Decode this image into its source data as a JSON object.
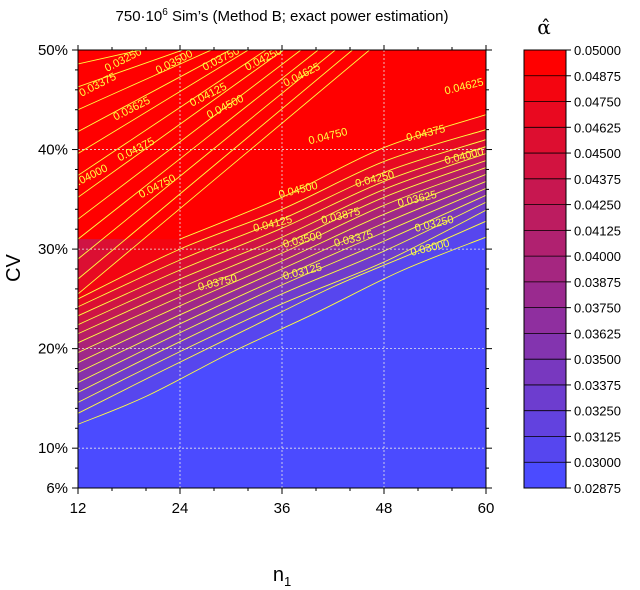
{
  "chart_data": {
    "type": "heatmap",
    "title_prefix": "750·10",
    "title_sup": "6",
    "title_rest": " Sim’s (Method B; exact power estimation)",
    "xlabel": "n",
    "xlabel_sub": "1",
    "ylabel": "CV",
    "xlim": [
      12,
      60
    ],
    "ylim": [
      0.06,
      0.5
    ],
    "x_ticks": [
      12,
      24,
      36,
      48,
      60
    ],
    "x_tick_labels": [
      "12",
      "24",
      "36",
      "48",
      "60"
    ],
    "y_ticks": [
      0.06,
      0.1,
      0.2,
      0.3,
      0.4,
      0.5
    ],
    "y_tick_labels": [
      "6%",
      "10%",
      "20%",
      "30%",
      "40%",
      "50%"
    ],
    "grid": true,
    "legend_title": "α̂",
    "legend_placement": "right",
    "color_levels": [
      "0.02875",
      "0.03000",
      "0.03125",
      "0.03250",
      "0.03375",
      "0.03500",
      "0.03625",
      "0.03750",
      "0.03875",
      "0.04000",
      "0.04125",
      "0.04250",
      "0.04375",
      "0.04500",
      "0.04625",
      "0.04750",
      "0.04875",
      "0.05000"
    ],
    "colors": {
      "low": "#4b4bff",
      "high": "#ff0000",
      "contour": "#ffff40"
    },
    "contour_lines": [
      {
        "label": "0.03000",
        "points": [
          [
            12,
            0.124
          ],
          [
            20,
            0.152
          ],
          [
            30,
            0.196
          ],
          [
            40,
            0.236
          ],
          [
            50,
            0.278
          ],
          [
            60,
            0.312
          ]
        ]
      },
      {
        "label": "0.03125",
        "points": [
          [
            12,
            0.135
          ],
          [
            22,
            0.178
          ],
          [
            32,
            0.22
          ],
          [
            42,
            0.262
          ],
          [
            52,
            0.298
          ],
          [
            60,
            0.328
          ]
        ]
      },
      {
        "label": "0.03250",
        "points": [
          [
            12,
            0.146
          ],
          [
            24,
            0.197
          ],
          [
            36,
            0.245
          ],
          [
            48,
            0.287
          ],
          [
            60,
            0.339
          ]
        ],
        "upper": [
          [
            12,
            0.486
          ],
          [
            22,
            0.505
          ]
        ]
      },
      {
        "label": "0.03375",
        "points": [
          [
            12,
            0.156
          ],
          [
            24,
            0.207
          ],
          [
            36,
            0.255
          ],
          [
            48,
            0.298
          ],
          [
            60,
            0.347
          ]
        ],
        "upper": [
          [
            12,
            0.463
          ],
          [
            26,
            0.505
          ]
        ]
      },
      {
        "label": "0.03500",
        "points": [
          [
            12,
            0.166
          ],
          [
            24,
            0.216
          ],
          [
            36,
            0.264
          ],
          [
            48,
            0.308
          ],
          [
            60,
            0.354
          ]
        ],
        "upper": [
          [
            12,
            0.44
          ],
          [
            29,
            0.505
          ]
        ]
      },
      {
        "label": "0.03625",
        "points": [
          [
            12,
            0.176
          ],
          [
            24,
            0.225
          ],
          [
            36,
            0.272
          ],
          [
            48,
            0.317
          ],
          [
            60,
            0.361
          ]
        ],
        "upper": [
          [
            12,
            0.418
          ],
          [
            31,
            0.505
          ]
        ]
      },
      {
        "label": "0.03750",
        "points": [
          [
            12,
            0.186
          ],
          [
            24,
            0.234
          ],
          [
            36,
            0.28
          ],
          [
            48,
            0.326
          ],
          [
            60,
            0.368
          ]
        ],
        "upper": [
          [
            12,
            0.396
          ],
          [
            33,
            0.505
          ]
        ]
      },
      {
        "label": "0.03875",
        "points": [
          [
            12,
            0.196
          ],
          [
            24,
            0.243
          ],
          [
            36,
            0.288
          ],
          [
            48,
            0.335
          ],
          [
            60,
            0.375
          ]
        ],
        "upper": [
          [
            12,
            0.374
          ],
          [
            35,
            0.505
          ]
        ]
      },
      {
        "label": "0.04000",
        "points": [
          [
            12,
            0.206
          ],
          [
            24,
            0.252
          ],
          [
            36,
            0.296
          ],
          [
            48,
            0.344
          ],
          [
            60,
            0.382
          ]
        ],
        "upper": [
          [
            12,
            0.352
          ],
          [
            37,
            0.505
          ]
        ]
      },
      {
        "label": "0.04125",
        "points": [
          [
            12,
            0.215
          ],
          [
            24,
            0.261
          ],
          [
            36,
            0.304
          ],
          [
            48,
            0.352
          ],
          [
            60,
            0.389
          ]
        ],
        "upper": [
          [
            12,
            0.33
          ],
          [
            39,
            0.505
          ]
        ]
      },
      {
        "label": "0.04250",
        "points": [
          [
            12,
            0.224
          ],
          [
            24,
            0.27
          ],
          [
            36,
            0.312
          ],
          [
            48,
            0.36
          ],
          [
            60,
            0.396
          ]
        ],
        "upper": [
          [
            12,
            0.31
          ],
          [
            41,
            0.505
          ]
        ]
      },
      {
        "label": "0.04375",
        "points": [
          [
            12,
            0.233
          ],
          [
            24,
            0.279
          ],
          [
            36,
            0.321
          ],
          [
            48,
            0.368
          ],
          [
            60,
            0.403
          ]
        ],
        "upper": [
          [
            12,
            0.29
          ],
          [
            43,
            0.505
          ]
        ]
      },
      {
        "label": "0.04500",
        "points": [
          [
            12,
            0.242
          ],
          [
            24,
            0.289
          ],
          [
            36,
            0.33
          ],
          [
            48,
            0.377
          ],
          [
            60,
            0.41
          ]
        ],
        "upper": [
          [
            12,
            0.27
          ],
          [
            45,
            0.505
          ]
        ]
      },
      {
        "label": "0.04625",
        "points": [
          [
            12,
            0.25
          ],
          [
            24,
            0.3
          ],
          [
            36,
            0.34
          ],
          [
            48,
            0.388
          ],
          [
            60,
            0.42
          ]
        ],
        "upper": [
          [
            12,
            0.255
          ],
          [
            47,
            0.505
          ]
        ]
      },
      {
        "label": "0.04750",
        "points": [
          [
            24,
            0.31
          ],
          [
            36,
            0.352
          ],
          [
            48,
            0.402
          ],
          [
            60,
            0.435
          ]
        ]
      }
    ],
    "contour_labels": [
      {
        "text": "0.03250",
        "x": 17.5,
        "y": 0.487,
        "angle": -27
      },
      {
        "text": "0.03375",
        "x": 14.5,
        "y": 0.462,
        "angle": -27
      },
      {
        "text": "0.03500",
        "x": 23.5,
        "y": 0.485,
        "angle": -27
      },
      {
        "text": "0.03625",
        "x": 18.5,
        "y": 0.438,
        "angle": -27
      },
      {
        "text": "0.03750",
        "x": 29,
        "y": 0.488,
        "angle": -27
      },
      {
        "text": "0.04250",
        "x": 34,
        "y": 0.488,
        "angle": -27
      },
      {
        "text": "0.04125",
        "x": 27.5,
        "y": 0.452,
        "angle": -27
      },
      {
        "text": "0.04625",
        "x": 38.5,
        "y": 0.472,
        "angle": -27
      },
      {
        "text": "0.04500",
        "x": 29.5,
        "y": 0.44,
        "angle": -27
      },
      {
        "text": "0.04375",
        "x": 19,
        "y": 0.397,
        "angle": -27
      },
      {
        "text": "0.04000",
        "x": 13.5,
        "y": 0.37,
        "angle": -27
      },
      {
        "text": "0.04750",
        "x": 21.5,
        "y": 0.36,
        "angle": -27
      },
      {
        "text": "0.04750",
        "x": 41.5,
        "y": 0.41,
        "angle": -14
      },
      {
        "text": "0.04625",
        "x": 57.5,
        "y": 0.46,
        "angle": -14
      },
      {
        "text": "0.04375",
        "x": 53,
        "y": 0.413,
        "angle": -14
      },
      {
        "text": "0.04000",
        "x": 57.5,
        "y": 0.39,
        "angle": -14
      },
      {
        "text": "0.04500",
        "x": 38,
        "y": 0.356,
        "angle": -14
      },
      {
        "text": "0.04250",
        "x": 47,
        "y": 0.367,
        "angle": -14
      },
      {
        "text": "0.03625",
        "x": 52,
        "y": 0.347,
        "angle": -14
      },
      {
        "text": "0.03250",
        "x": 54,
        "y": 0.322,
        "angle": -14
      },
      {
        "text": "0.04125",
        "x": 35,
        "y": 0.322,
        "angle": -14
      },
      {
        "text": "0.03875",
        "x": 43,
        "y": 0.33,
        "angle": -14
      },
      {
        "text": "0.03500",
        "x": 38.5,
        "y": 0.306,
        "angle": -14
      },
      {
        "text": "0.03375",
        "x": 44.5,
        "y": 0.307,
        "angle": -14
      },
      {
        "text": "0.03750",
        "x": 28.5,
        "y": 0.263,
        "angle": -14
      },
      {
        "text": "0.03125",
        "x": 38.5,
        "y": 0.274,
        "angle": -14
      },
      {
        "text": "0.03000",
        "x": 53.5,
        "y": 0.298,
        "angle": -14
      }
    ]
  }
}
